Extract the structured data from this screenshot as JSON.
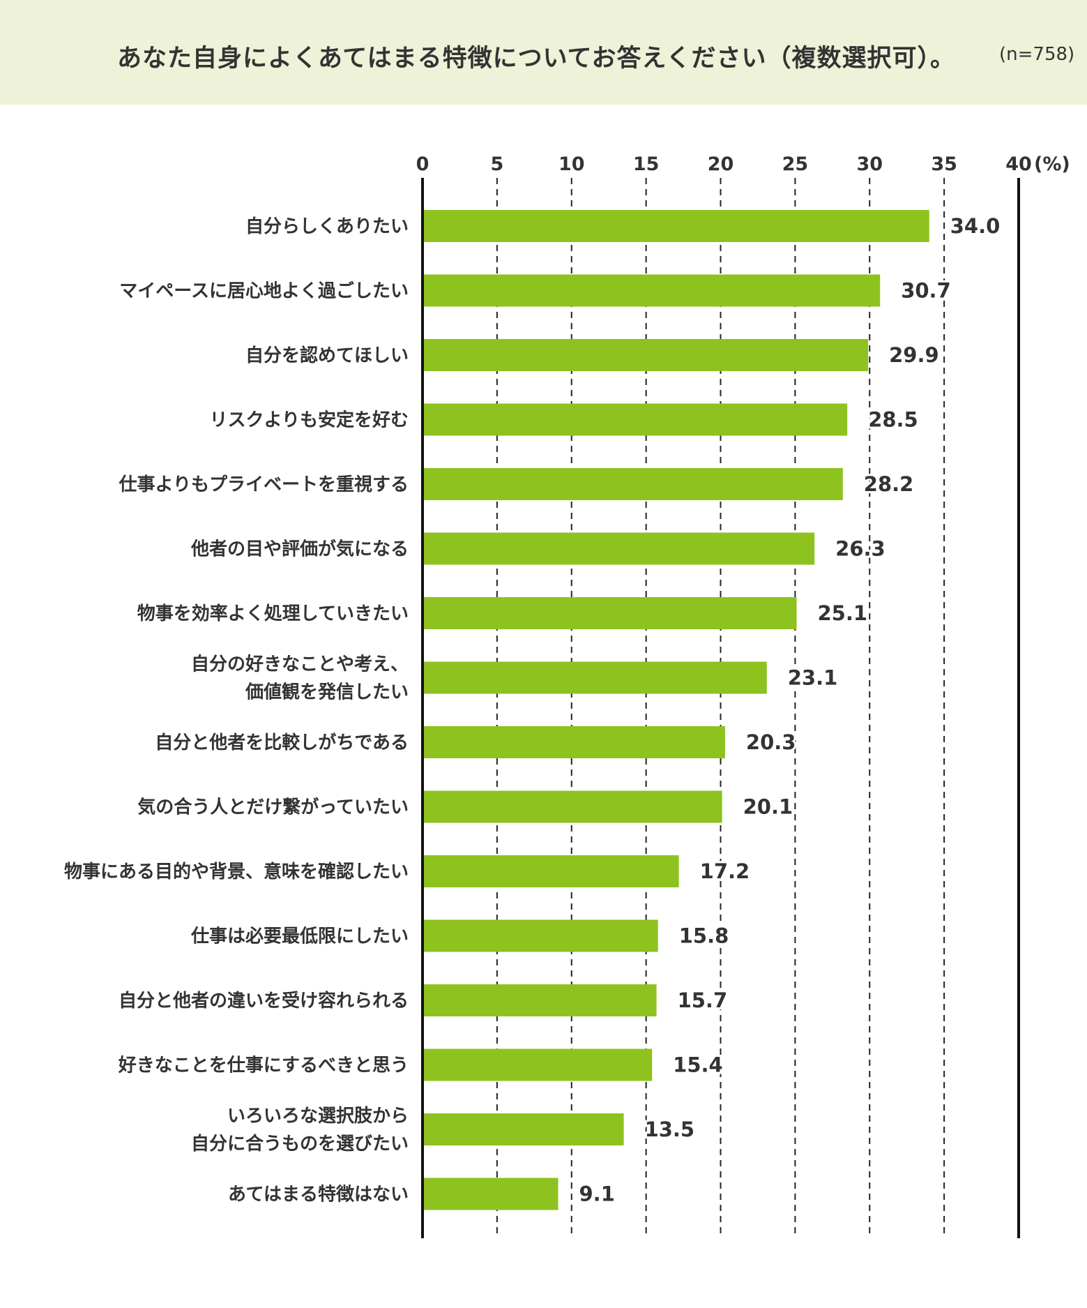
{
  "header": {
    "title": "あなた自身によくあてはまる特徴についてお答えください（複数選択可）。",
    "note": "(n=758)"
  },
  "colors": {
    "bar": "#8dc21f",
    "header_bg": "#eef2d8",
    "text": "#333333"
  },
  "chart_data": {
    "type": "bar",
    "orientation": "horizontal",
    "title": "あなた自身によくあてはまる特徴についてお答えください（複数選択可）。",
    "unit_label": "(%)",
    "xlim": [
      0,
      40
    ],
    "ticks": [
      0,
      5,
      10,
      15,
      20,
      25,
      30,
      35,
      40
    ],
    "tick_labels": [
      "0",
      "5",
      "10",
      "15",
      "20",
      "25",
      "30",
      "35",
      "40"
    ],
    "grid": "dashed-vertical",
    "categories": [
      [
        "自分らしくありたい"
      ],
      [
        "マイペースに居心地よく過ごしたい"
      ],
      [
        "自分を認めてほしい"
      ],
      [
        "リスクよりも安定を好む"
      ],
      [
        "仕事よりもプライベートを重視する"
      ],
      [
        "他者の目や評価が気になる"
      ],
      [
        "物事を効率よく処理していきたい"
      ],
      [
        "自分の好きなことや考え、",
        "価値観を発信したい"
      ],
      [
        "自分と他者を比較しがちである"
      ],
      [
        "気の合う人とだけ繋がっていたい"
      ],
      [
        "物事にある目的や背景、意味を確認したい"
      ],
      [
        "仕事は必要最低限にしたい"
      ],
      [
        "自分と他者の違いを受け容れられる"
      ],
      [
        "好きなことを仕事にするべきと思う"
      ],
      [
        "いろいろな選択肢から",
        "自分に合うものを選びたい"
      ],
      [
        "あてはまる特徴はない"
      ]
    ],
    "values": [
      34.0,
      30.7,
      29.9,
      28.5,
      28.2,
      26.3,
      25.1,
      23.1,
      20.3,
      20.1,
      17.2,
      15.8,
      15.7,
      15.4,
      13.5,
      9.1
    ],
    "value_labels": [
      "34.0",
      "30.7",
      "29.9",
      "28.5",
      "28.2",
      "26.3",
      "25.1",
      "23.1",
      "20.3",
      "20.1",
      "17.2",
      "15.8",
      "15.7",
      "15.4",
      "13.5",
      "9.1"
    ]
  }
}
